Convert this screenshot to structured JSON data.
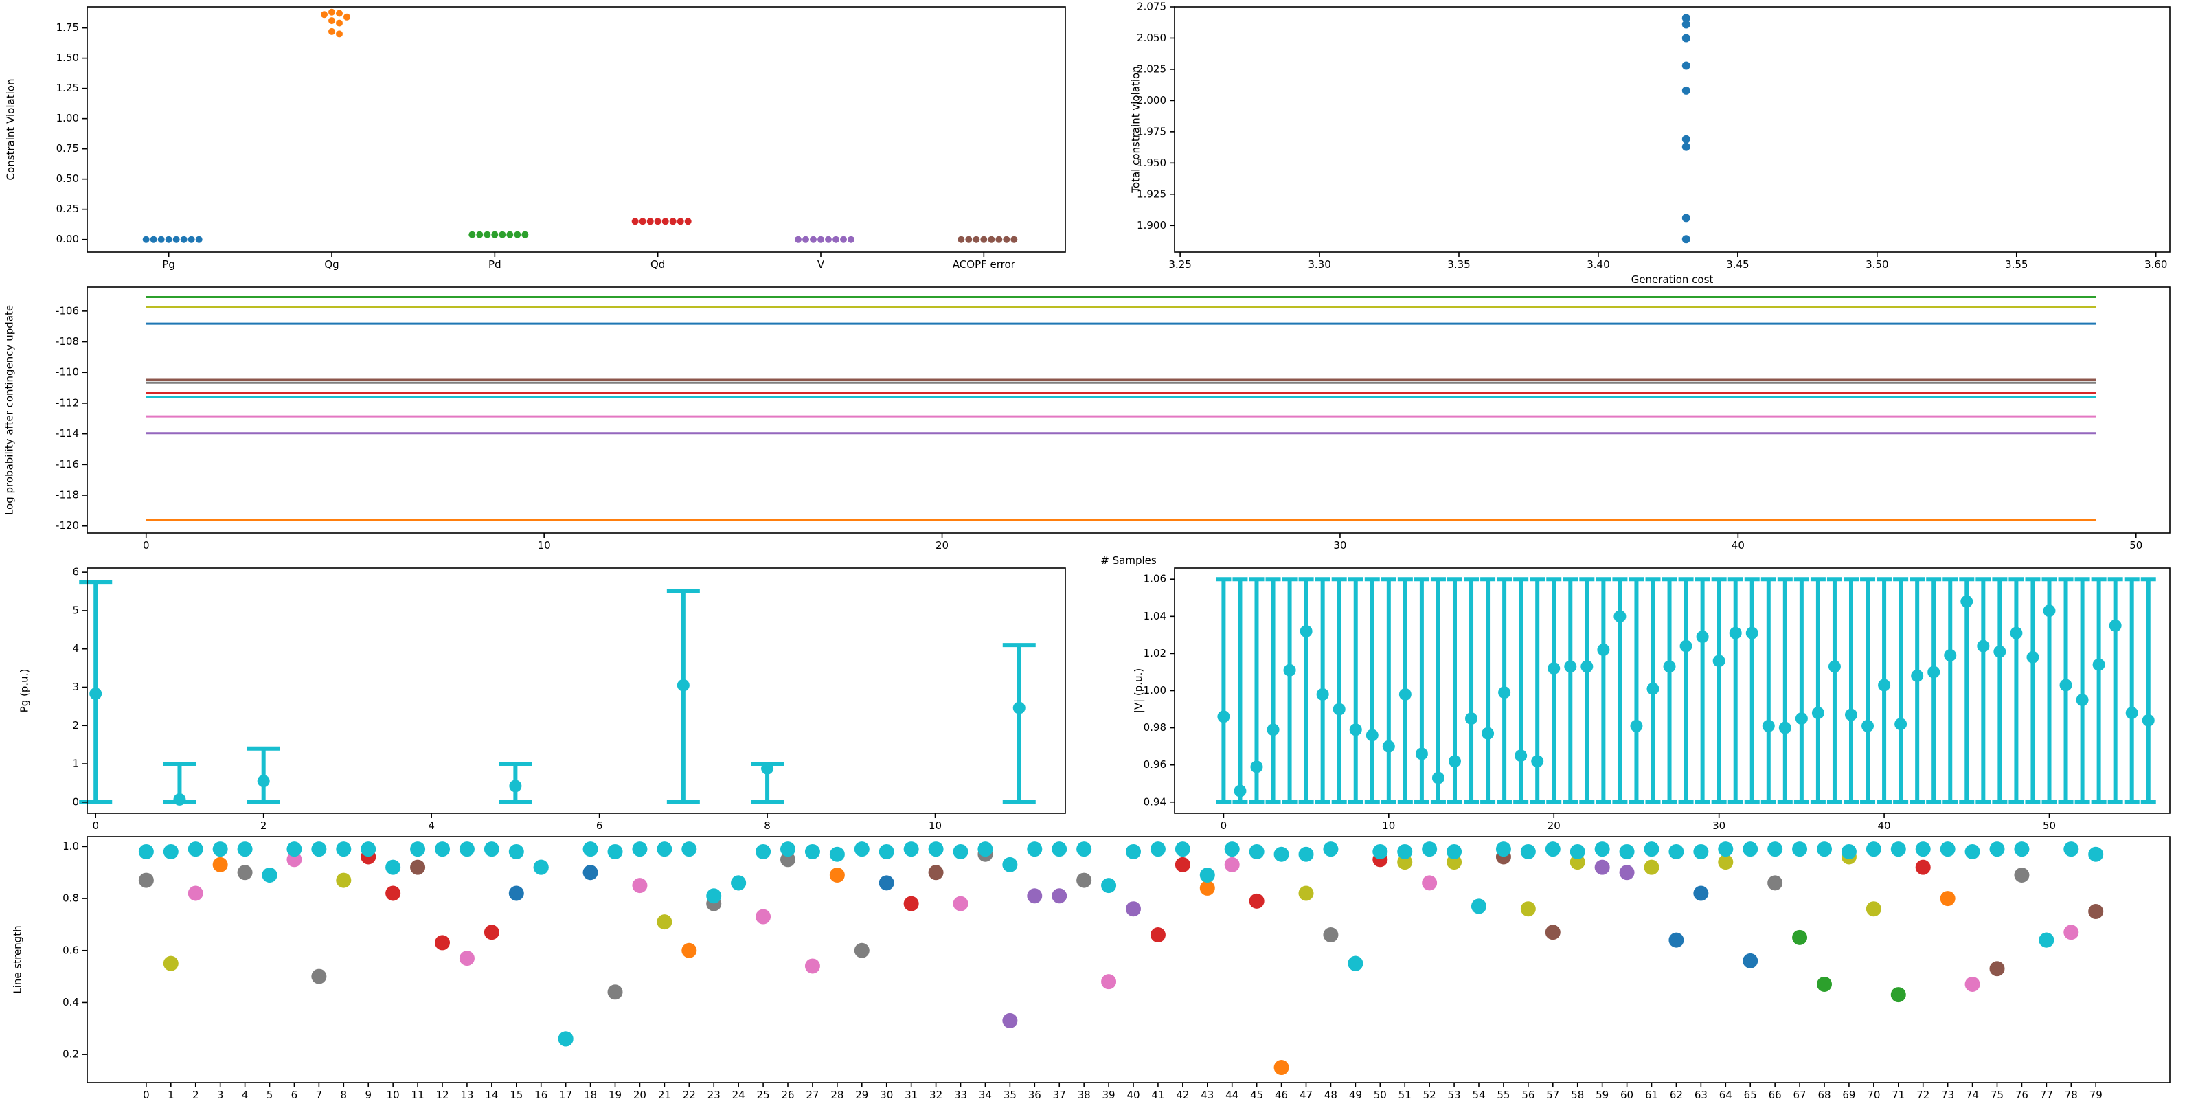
{
  "chart_data": [
    {
      "type": "swarm",
      "ylabel": "Constraint Violation",
      "categories": [
        "Pg",
        "Qg",
        "Pd",
        "Qd",
        "V",
        "ACOPF error"
      ],
      "colors": [
        "#1f77b4",
        "#ff7f0e",
        "#2ca02c",
        "#d62728",
        "#9467bd",
        "#8c564b"
      ],
      "values": [
        [
          0,
          0,
          0,
          0,
          0,
          0,
          0,
          0
        ],
        [
          1.88,
          1.87,
          1.86,
          1.84,
          1.81,
          1.79,
          1.72,
          1.7
        ],
        [
          0.04,
          0.04,
          0.04,
          0.04,
          0.04,
          0.04,
          0.04,
          0.04
        ],
        [
          0.15,
          0.15,
          0.15,
          0.15,
          0.15,
          0.15,
          0.15,
          0.15
        ],
        [
          0,
          0,
          0,
          0,
          0,
          0,
          0,
          0
        ],
        [
          0,
          0,
          0,
          0,
          0,
          0,
          0,
          0
        ]
      ],
      "xlim": [
        -0.5,
        5.5
      ],
      "ylim": [
        -0.104,
        1.924
      ],
      "yticks": [
        {
          "value": 0,
          "label": "0.00"
        },
        {
          "value": 0.25,
          "label": "0.25"
        },
        {
          "value": 0.5,
          "label": "0.50"
        },
        {
          "value": 0.75,
          "label": "0.75"
        },
        {
          "value": 1,
          "label": "1.00"
        },
        {
          "value": 1.25,
          "label": "1.25"
        },
        {
          "value": 1.5,
          "label": "1.50"
        },
        {
          "value": 1.75,
          "label": "1.75"
        }
      ]
    },
    {
      "type": "scatter",
      "xlabel": "Generation cost",
      "ylabel": "Total constraint violation",
      "color": "#1f77b4",
      "x": [
        3.4315,
        3.4315,
        3.4315,
        3.4315,
        3.4315,
        3.4315,
        3.4315,
        3.4315,
        3.4315
      ],
      "y": [
        2.066,
        2.061,
        2.05,
        2.028,
        2.008,
        1.969,
        1.963,
        1.906,
        1.889
      ],
      "xlim": [
        3.248,
        3.605
      ],
      "ylim": [
        1.8787,
        2.075
      ],
      "xticks": [
        3.25,
        {
          "value": 3.3,
          "label": "3.30"
        },
        3.35,
        {
          "value": 3.4,
          "label": "3.40"
        },
        3.45,
        {
          "value": 3.5,
          "label": "3.50"
        },
        3.55,
        {
          "value": 3.6,
          "label": "3.60"
        }
      ],
      "yticks": [
        {
          "value": 1.9,
          "label": "1.900"
        },
        {
          "value": 1.925,
          "label": "1.925"
        },
        {
          "value": 1.95,
          "label": "1.950"
        },
        {
          "value": 1.975,
          "label": "1.975"
        },
        {
          "value": 2.0,
          "label": "2.000"
        },
        {
          "value": 2.025,
          "label": "2.025"
        },
        {
          "value": 2.05,
          "label": "2.050"
        },
        {
          "value": 2.075,
          "label": "2.075"
        }
      ]
    },
    {
      "type": "line",
      "xlabel": "# Samples",
      "ylabel": "Log probability after contingency update",
      "x": [
        0,
        49
      ],
      "series": [
        {
          "color": "#1f77b4",
          "values": [
            -106.82,
            -106.82
          ]
        },
        {
          "color": "#ff7f0e",
          "values": [
            -119.63,
            -119.63
          ]
        },
        {
          "color": "#2ca02c",
          "values": [
            -105.09,
            -105.09
          ]
        },
        {
          "color": "#d62728",
          "values": [
            -111.31,
            -111.31
          ]
        },
        {
          "color": "#9467bd",
          "values": [
            -113.96,
            -113.96
          ]
        },
        {
          "color": "#8c564b",
          "values": [
            -110.48,
            -110.48
          ]
        },
        {
          "color": "#e377c2",
          "values": [
            -112.86,
            -112.86
          ]
        },
        {
          "color": "#7f7f7f",
          "values": [
            -110.67,
            -110.67
          ]
        },
        {
          "color": "#bcbd22",
          "values": [
            -105.73,
            -105.73
          ]
        },
        {
          "color": "#17becf",
          "values": [
            -111.58,
            -111.58
          ]
        }
      ],
      "xlim": [
        -1.48,
        50.85
      ],
      "ylim": [
        -120.46,
        -104.44
      ],
      "xticks": [
        0,
        10,
        20,
        30,
        40,
        50
      ],
      "yticks": [
        -120,
        -118,
        -116,
        -114,
        -112,
        -110,
        -108,
        -106
      ]
    },
    {
      "type": "errorbar",
      "ylabel": "Pg (p.u.)",
      "color": "#17becf",
      "x": [
        0,
        1,
        2,
        5,
        7,
        8,
        11
      ],
      "values": [
        2.83,
        0.07,
        0.55,
        0.42,
        3.05,
        0.88,
        2.46
      ],
      "lower": [
        0,
        0,
        0,
        0,
        0,
        0,
        0
      ],
      "upper": [
        5.75,
        1.0,
        1.4,
        1.0,
        5.5,
        1.0,
        4.1
      ],
      "xlim": [
        -0.1,
        11.55
      ],
      "ylim": [
        -0.29,
        6.11
      ],
      "xticks": [
        0,
        2,
        4,
        6,
        8,
        10
      ],
      "yticks": [
        0,
        1,
        2,
        3,
        4,
        5,
        6
      ]
    },
    {
      "type": "errorbar",
      "ylabel": "|V| (p.u.)",
      "color": "#17becf",
      "x": [
        0,
        1,
        2,
        3,
        4,
        5,
        6,
        7,
        8,
        9,
        10,
        11,
        12,
        13,
        14,
        15,
        16,
        17,
        18,
        19,
        20,
        21,
        22,
        23,
        24,
        25,
        26,
        27,
        28,
        29,
        30,
        31,
        32,
        33,
        34,
        35,
        36,
        37,
        38,
        39,
        40,
        41,
        42,
        43,
        44,
        45,
        46,
        47,
        48,
        49,
        50,
        51,
        52,
        53,
        54,
        55,
        56
      ],
      "values": [
        0.986,
        0.946,
        0.959,
        0.979,
        1.011,
        1.032,
        0.998,
        0.99,
        0.979,
        0.976,
        0.97,
        0.998,
        0.966,
        0.953,
        0.962,
        0.985,
        0.977,
        0.999,
        0.965,
        0.962,
        1.012,
        1.013,
        1.013,
        1.022,
        1.04,
        0.981,
        1.001,
        1.013,
        1.024,
        1.029,
        1.016,
        1.031,
        1.031,
        0.981,
        0.98,
        0.985,
        0.988,
        1.013,
        0.987,
        0.981,
        1.003,
        0.982,
        1.008,
        1.01,
        1.019,
        1.048,
        1.024,
        1.021,
        1.031,
        1.018,
        1.043,
        1.003,
        0.995,
        1.014,
        1.035,
        0.988,
        0.984
      ],
      "lower": 0.94,
      "upper": 1.06,
      "xlim": [
        -2.97,
        57.3
      ],
      "ylim": [
        0.934,
        1.066
      ],
      "xticks": [
        0,
        10,
        20,
        30,
        40,
        50
      ],
      "yticks": [
        0.94,
        0.96,
        0.98,
        {
          "value": 1.0,
          "label": "1.00"
        },
        1.02,
        1.04,
        1.06
      ]
    },
    {
      "type": "scatter",
      "ylabel": "Line strength",
      "x": [
        0,
        1,
        2,
        3,
        4,
        5,
        6,
        7,
        8,
        9,
        10,
        11,
        12,
        13,
        14,
        15,
        16,
        17,
        18,
        19,
        20,
        21,
        22,
        23,
        24,
        25,
        26,
        27,
        28,
        29,
        30,
        31,
        32,
        33,
        34,
        35,
        36,
        37,
        38,
        39,
        40,
        41,
        42,
        43,
        44,
        45,
        46,
        47,
        48,
        49,
        50,
        51,
        52,
        53,
        54,
        55,
        56,
        57,
        58,
        59,
        60,
        61,
        62,
        63,
        64,
        65,
        66,
        67,
        68,
        69,
        70,
        71,
        72,
        73,
        74,
        75,
        76,
        77,
        78,
        79
      ],
      "series": [
        {
          "colors": [
            "#7f7f7f",
            "#bcbd22",
            "#e377c2",
            "#ff7f0e",
            "#7f7f7f",
            "#17becf",
            "#e377c2",
            "#7f7f7f",
            "#bcbd22",
            "#d62728",
            "#d62728",
            "#8c564b",
            "#d62728",
            "#e377c2",
            "#d62728",
            "#1f77b4",
            "#17becf",
            "#17becf",
            "#1f77b4",
            "#7f7f7f",
            "#e377c2",
            "#bcbd22",
            "#ff7f0e",
            "#7f7f7f",
            "#17becf",
            "#e377c2",
            "#7f7f7f",
            "#e377c2",
            "#ff7f0e",
            "#7f7f7f",
            "#1f77b4",
            "#d62728",
            "#8c564b",
            "#e377c2",
            "#7f7f7f",
            "#9467bd",
            "#9467bd",
            "#9467bd",
            "#7f7f7f",
            "#e377c2",
            "#9467bd",
            "#d62728",
            "#d62728",
            "#ff7f0e",
            "#e377c2",
            "#d62728",
            "#ff7f0e",
            "#bcbd22",
            "#7f7f7f",
            "#17becf",
            "#d62728",
            "#bcbd22",
            "#e377c2",
            "#bcbd22",
            "#17becf",
            "#8c564b",
            "#bcbd22",
            "#8c564b",
            "#bcbd22",
            "#9467bd",
            "#9467bd",
            "#bcbd22",
            "#1f77b4",
            "#1f77b4",
            "#bcbd22",
            "#1f77b4",
            "#7f7f7f",
            "#2ca02c",
            "#2ca02c",
            "#bcbd22",
            "#bcbd22",
            "#2ca02c",
            "#d62728",
            "#ff7f0e",
            "#e377c2",
            "#8c564b",
            "#7f7f7f",
            "#17becf",
            "#e377c2",
            "#8c564b"
          ],
          "values": [
            0.87,
            0.55,
            0.82,
            0.93,
            0.9,
            0.89,
            0.95,
            0.5,
            0.87,
            0.96,
            0.82,
            0.92,
            0.63,
            0.57,
            0.67,
            0.82,
            0.92,
            0.26,
            0.9,
            0.44,
            0.85,
            0.71,
            0.6,
            0.78,
            0.86,
            0.73,
            0.95,
            0.54,
            0.89,
            0.6,
            0.86,
            0.78,
            0.9,
            0.78,
            0.97,
            0.33,
            0.81,
            0.81,
            0.87,
            0.48,
            0.76,
            0.66,
            0.93,
            0.84,
            0.93,
            0.79,
            0.15,
            0.82,
            0.66,
            0.55,
            0.95,
            0.94,
            0.86,
            0.94,
            0.77,
            0.96,
            0.76,
            0.67,
            0.94,
            0.92,
            0.9,
            0.92,
            0.64,
            0.82,
            0.94,
            0.56,
            0.86,
            0.65,
            0.47,
            0.96,
            0.76,
            0.43,
            0.92,
            0.8,
            0.47,
            0.53,
            0.89,
            0.64,
            0.67,
            0.75
          ]
        },
        {
          "color": "#17becf",
          "values": [
            0.98,
            0.98,
            0.99,
            0.99,
            0.99,
            0.89,
            0.99,
            0.99,
            0.99,
            0.99,
            0.92,
            0.99,
            0.99,
            0.99,
            0.99,
            0.98,
            0.92,
            0.26,
            0.99,
            0.98,
            0.99,
            0.99,
            0.99,
            0.81,
            0.86,
            0.98,
            0.99,
            0.98,
            0.97,
            0.99,
            0.98,
            0.99,
            0.99,
            0.98,
            0.99,
            0.93,
            0.99,
            0.99,
            0.99,
            0.85,
            0.98,
            0.99,
            0.99,
            0.89,
            0.99,
            0.98,
            0.97,
            0.97,
            0.99,
            0.55,
            0.98,
            0.98,
            0.99,
            0.98,
            0.77,
            0.99,
            0.98,
            0.99,
            0.98,
            0.99,
            0.98,
            0.99,
            0.98,
            0.98,
            0.99,
            0.99,
            0.99,
            0.99,
            0.99,
            0.98,
            0.99,
            0.99,
            0.99,
            0.99,
            0.98,
            0.99,
            0.99,
            0.64,
            0.99,
            0.97
          ]
        }
      ],
      "xlim": [
        -2.39,
        82.0
      ],
      "ylim": [
        0.092,
        1.038
      ],
      "xticks": [
        0,
        1,
        2,
        3,
        4,
        5,
        6,
        7,
        8,
        9,
        10,
        11,
        12,
        13,
        14,
        15,
        16,
        17,
        18,
        19,
        20,
        21,
        22,
        23,
        24,
        25,
        26,
        27,
        28,
        29,
        30,
        31,
        32,
        33,
        34,
        35,
        36,
        37,
        38,
        39,
        40,
        41,
        42,
        43,
        44,
        45,
        46,
        47,
        48,
        49,
        50,
        51,
        52,
        53,
        54,
        55,
        56,
        57,
        58,
        59,
        60,
        61,
        62,
        63,
        64,
        65,
        66,
        67,
        68,
        69,
        70,
        71,
        72,
        73,
        74,
        75,
        76,
        77,
        78,
        79
      ],
      "yticks": [
        0.2,
        0.4,
        0.6,
        0.8,
        {
          "value": 1.0,
          "label": "1.0"
        }
      ]
    }
  ]
}
